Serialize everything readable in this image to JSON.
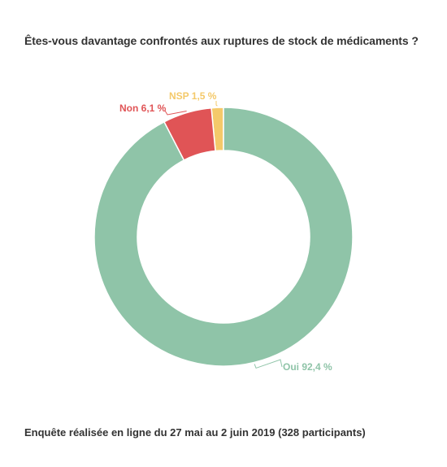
{
  "title": "Êtes-vous davantage confrontés aux ruptures de stock de médicaments ?",
  "footer": "Enquête réalisée en ligne du 27 mai au 2 juin 2019 (328 participants)",
  "chart_data": {
    "type": "pie",
    "variant": "donut",
    "categories": [
      "NSP",
      "Non",
      "Oui"
    ],
    "values": [
      1.5,
      6.1,
      92.4
    ],
    "labels": [
      "NSP 1,5 %",
      "Non 6,1 %",
      "Oui 92,4 %"
    ],
    "colors": [
      "#f4c96a",
      "#e05456",
      "#8fc4a8"
    ]
  }
}
